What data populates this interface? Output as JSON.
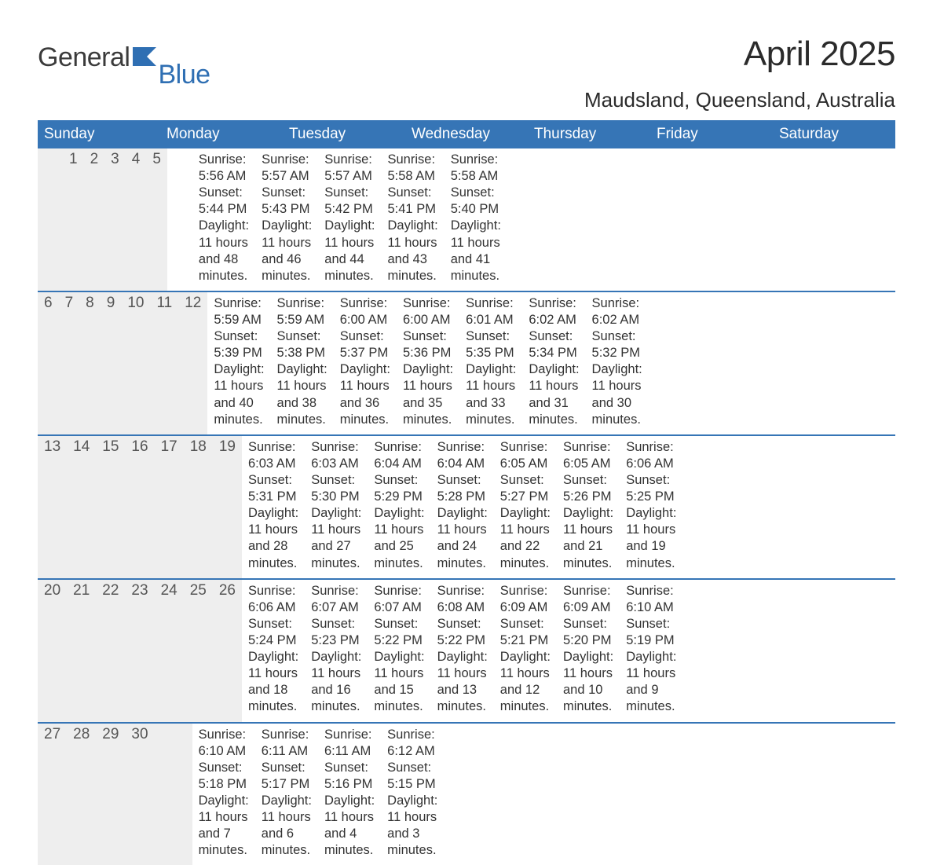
{
  "brand": {
    "word1": "General",
    "word2": "Blue",
    "accent_color": "#2f6fb3"
  },
  "title": "April 2025",
  "location": "Maudsland, Queensland, Australia",
  "colors": {
    "header_bg": "#3675b6",
    "header_text": "#ffffff",
    "daynum_bg": "#eeeeee",
    "daynum_text": "#555555",
    "body_text": "#333333",
    "week_border": "#3675b6",
    "page_bg": "#ffffff"
  },
  "weekdays": [
    "Sunday",
    "Monday",
    "Tuesday",
    "Wednesday",
    "Thursday",
    "Friday",
    "Saturday"
  ],
  "weeks": [
    {
      "nums": [
        "",
        "",
        "1",
        "2",
        "3",
        "4",
        "5"
      ],
      "cells": [
        {},
        {},
        {
          "sunrise": "Sunrise: 5:56 AM",
          "sunset": "Sunset: 5:44 PM",
          "d1": "Daylight: 11 hours",
          "d2": "and 48 minutes."
        },
        {
          "sunrise": "Sunrise: 5:57 AM",
          "sunset": "Sunset: 5:43 PM",
          "d1": "Daylight: 11 hours",
          "d2": "and 46 minutes."
        },
        {
          "sunrise": "Sunrise: 5:57 AM",
          "sunset": "Sunset: 5:42 PM",
          "d1": "Daylight: 11 hours",
          "d2": "and 44 minutes."
        },
        {
          "sunrise": "Sunrise: 5:58 AM",
          "sunset": "Sunset: 5:41 PM",
          "d1": "Daylight: 11 hours",
          "d2": "and 43 minutes."
        },
        {
          "sunrise": "Sunrise: 5:58 AM",
          "sunset": "Sunset: 5:40 PM",
          "d1": "Daylight: 11 hours",
          "d2": "and 41 minutes."
        }
      ]
    },
    {
      "nums": [
        "6",
        "7",
        "8",
        "9",
        "10",
        "11",
        "12"
      ],
      "cells": [
        {
          "sunrise": "Sunrise: 5:59 AM",
          "sunset": "Sunset: 5:39 PM",
          "d1": "Daylight: 11 hours",
          "d2": "and 40 minutes."
        },
        {
          "sunrise": "Sunrise: 5:59 AM",
          "sunset": "Sunset: 5:38 PM",
          "d1": "Daylight: 11 hours",
          "d2": "and 38 minutes."
        },
        {
          "sunrise": "Sunrise: 6:00 AM",
          "sunset": "Sunset: 5:37 PM",
          "d1": "Daylight: 11 hours",
          "d2": "and 36 minutes."
        },
        {
          "sunrise": "Sunrise: 6:00 AM",
          "sunset": "Sunset: 5:36 PM",
          "d1": "Daylight: 11 hours",
          "d2": "and 35 minutes."
        },
        {
          "sunrise": "Sunrise: 6:01 AM",
          "sunset": "Sunset: 5:35 PM",
          "d1": "Daylight: 11 hours",
          "d2": "and 33 minutes."
        },
        {
          "sunrise": "Sunrise: 6:02 AM",
          "sunset": "Sunset: 5:34 PM",
          "d1": "Daylight: 11 hours",
          "d2": "and 31 minutes."
        },
        {
          "sunrise": "Sunrise: 6:02 AM",
          "sunset": "Sunset: 5:32 PM",
          "d1": "Daylight: 11 hours",
          "d2": "and 30 minutes."
        }
      ]
    },
    {
      "nums": [
        "13",
        "14",
        "15",
        "16",
        "17",
        "18",
        "19"
      ],
      "cells": [
        {
          "sunrise": "Sunrise: 6:03 AM",
          "sunset": "Sunset: 5:31 PM",
          "d1": "Daylight: 11 hours",
          "d2": "and 28 minutes."
        },
        {
          "sunrise": "Sunrise: 6:03 AM",
          "sunset": "Sunset: 5:30 PM",
          "d1": "Daylight: 11 hours",
          "d2": "and 27 minutes."
        },
        {
          "sunrise": "Sunrise: 6:04 AM",
          "sunset": "Sunset: 5:29 PM",
          "d1": "Daylight: 11 hours",
          "d2": "and 25 minutes."
        },
        {
          "sunrise": "Sunrise: 6:04 AM",
          "sunset": "Sunset: 5:28 PM",
          "d1": "Daylight: 11 hours",
          "d2": "and 24 minutes."
        },
        {
          "sunrise": "Sunrise: 6:05 AM",
          "sunset": "Sunset: 5:27 PM",
          "d1": "Daylight: 11 hours",
          "d2": "and 22 minutes."
        },
        {
          "sunrise": "Sunrise: 6:05 AM",
          "sunset": "Sunset: 5:26 PM",
          "d1": "Daylight: 11 hours",
          "d2": "and 21 minutes."
        },
        {
          "sunrise": "Sunrise: 6:06 AM",
          "sunset": "Sunset: 5:25 PM",
          "d1": "Daylight: 11 hours",
          "d2": "and 19 minutes."
        }
      ]
    },
    {
      "nums": [
        "20",
        "21",
        "22",
        "23",
        "24",
        "25",
        "26"
      ],
      "cells": [
        {
          "sunrise": "Sunrise: 6:06 AM",
          "sunset": "Sunset: 5:24 PM",
          "d1": "Daylight: 11 hours",
          "d2": "and 18 minutes."
        },
        {
          "sunrise": "Sunrise: 6:07 AM",
          "sunset": "Sunset: 5:23 PM",
          "d1": "Daylight: 11 hours",
          "d2": "and 16 minutes."
        },
        {
          "sunrise": "Sunrise: 6:07 AM",
          "sunset": "Sunset: 5:22 PM",
          "d1": "Daylight: 11 hours",
          "d2": "and 15 minutes."
        },
        {
          "sunrise": "Sunrise: 6:08 AM",
          "sunset": "Sunset: 5:22 PM",
          "d1": "Daylight: 11 hours",
          "d2": "and 13 minutes."
        },
        {
          "sunrise": "Sunrise: 6:09 AM",
          "sunset": "Sunset: 5:21 PM",
          "d1": "Daylight: 11 hours",
          "d2": "and 12 minutes."
        },
        {
          "sunrise": "Sunrise: 6:09 AM",
          "sunset": "Sunset: 5:20 PM",
          "d1": "Daylight: 11 hours",
          "d2": "and 10 minutes."
        },
        {
          "sunrise": "Sunrise: 6:10 AM",
          "sunset": "Sunset: 5:19 PM",
          "d1": "Daylight: 11 hours",
          "d2": "and 9 minutes."
        }
      ]
    },
    {
      "nums": [
        "27",
        "28",
        "29",
        "30",
        "",
        "",
        ""
      ],
      "cells": [
        {
          "sunrise": "Sunrise: 6:10 AM",
          "sunset": "Sunset: 5:18 PM",
          "d1": "Daylight: 11 hours",
          "d2": "and 7 minutes."
        },
        {
          "sunrise": "Sunrise: 6:11 AM",
          "sunset": "Sunset: 5:17 PM",
          "d1": "Daylight: 11 hours",
          "d2": "and 6 minutes."
        },
        {
          "sunrise": "Sunrise: 6:11 AM",
          "sunset": "Sunset: 5:16 PM",
          "d1": "Daylight: 11 hours",
          "d2": "and 4 minutes."
        },
        {
          "sunrise": "Sunrise: 6:12 AM",
          "sunset": "Sunset: 5:15 PM",
          "d1": "Daylight: 11 hours",
          "d2": "and 3 minutes."
        },
        {},
        {},
        {}
      ]
    }
  ]
}
